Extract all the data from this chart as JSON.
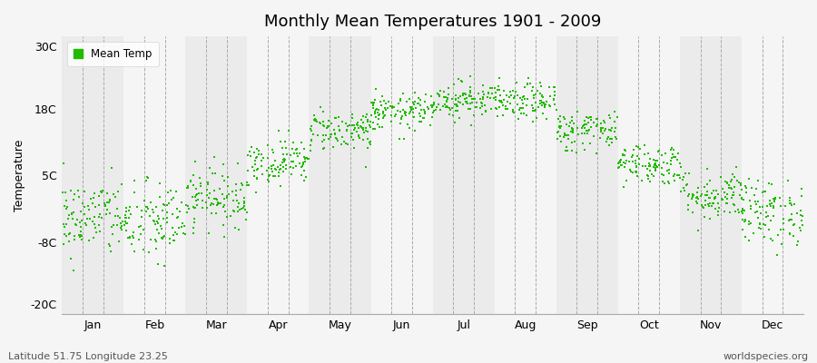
{
  "title": "Monthly Mean Temperatures 1901 - 2009",
  "ylabel": "Temperature",
  "subtitle": "Latitude 51.75 Longitude 23.25",
  "watermark": "worldspecies.org",
  "dot_color": "#22bb00",
  "background_color": "#f5f5f5",
  "plot_bg_colors": [
    "#ebebeb",
    "#f5f5f5"
  ],
  "yticks": [
    -20,
    -8,
    5,
    18,
    30
  ],
  "ytick_labels": [
    "-20C",
    "-8C",
    "5C",
    "18C",
    "30C"
  ],
  "ylim": [
    -22,
    32
  ],
  "months": [
    "Jan",
    "Feb",
    "Mar",
    "Apr",
    "May",
    "Jun",
    "Jul",
    "Aug",
    "Sep",
    "Oct",
    "Nov",
    "Dec"
  ],
  "mean_temps": [
    -3.5,
    -4.5,
    0.5,
    7.5,
    13.5,
    17.0,
    19.5,
    19.0,
    13.5,
    7.0,
    1.0,
    -2.5
  ],
  "std_temps": [
    3.8,
    4.0,
    2.8,
    2.2,
    2.0,
    1.8,
    1.8,
    1.8,
    2.0,
    2.0,
    2.5,
    3.2
  ],
  "n_years": 109,
  "legend_label": "Mean Temp",
  "marker_size": 4
}
